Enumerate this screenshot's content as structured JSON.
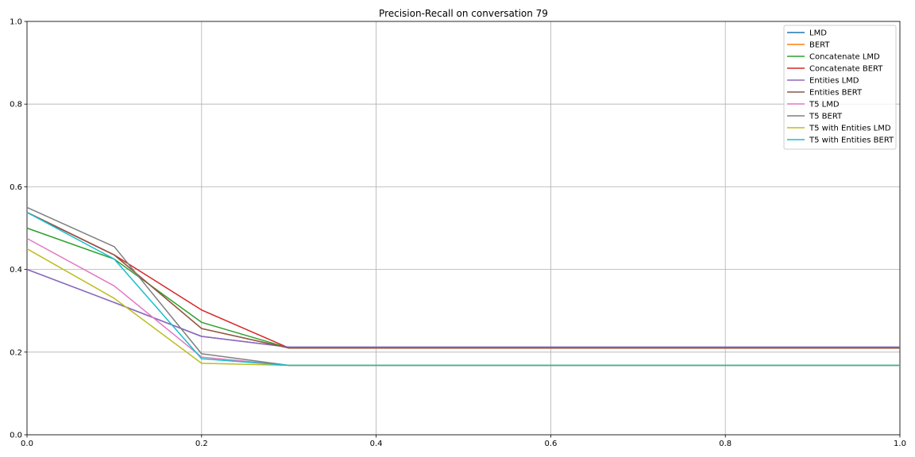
{
  "chart_data": {
    "type": "line",
    "title": "Precision-Recall on conversation 79",
    "xlabel": "",
    "ylabel": "",
    "xlim": [
      0,
      1
    ],
    "ylim": [
      0,
      1
    ],
    "xticks": [
      "0.0",
      "0.2",
      "0.4",
      "0.6",
      "0.8",
      "1.0"
    ],
    "yticks": [
      "0.0",
      "0.2",
      "0.4",
      "0.6",
      "0.8",
      "1.0"
    ],
    "grid": true,
    "legend_position": "top-right",
    "x": [
      0.0,
      0.1,
      0.2,
      0.3,
      0.4,
      0.5,
      0.6,
      0.7,
      0.8,
      0.9,
      1.0
    ],
    "series": [
      {
        "name": "LMD",
        "color": "#1f77b4",
        "values": [
          0.4,
          0.32,
          0.238,
          0.212,
          0.212,
          0.212,
          0.212,
          0.212,
          0.212,
          0.212,
          0.212
        ]
      },
      {
        "name": "BERT",
        "color": "#ff7f0e",
        "values": [
          0.538,
          0.435,
          0.257,
          0.21,
          0.21,
          0.21,
          0.21,
          0.21,
          0.21,
          0.21,
          0.21
        ]
      },
      {
        "name": "Concatenate LMD",
        "color": "#2ca02c",
        "values": [
          0.5,
          0.425,
          0.272,
          0.21,
          0.21,
          0.21,
          0.21,
          0.21,
          0.21,
          0.21,
          0.21
        ]
      },
      {
        "name": "Concatenate BERT",
        "color": "#d62728",
        "values": [
          0.538,
          0.435,
          0.302,
          0.21,
          0.21,
          0.21,
          0.21,
          0.21,
          0.21,
          0.21,
          0.21
        ]
      },
      {
        "name": "Entities LMD",
        "color": "#9467bd",
        "values": [
          0.4,
          0.32,
          0.238,
          0.212,
          0.212,
          0.212,
          0.212,
          0.212,
          0.212,
          0.212,
          0.212
        ]
      },
      {
        "name": "Entities BERT",
        "color": "#8c564b",
        "values": [
          0.538,
          0.435,
          0.257,
          0.21,
          0.21,
          0.21,
          0.21,
          0.21,
          0.21,
          0.21,
          0.21
        ]
      },
      {
        "name": "T5 LMD",
        "color": "#e377c2",
        "values": [
          0.475,
          0.36,
          0.188,
          0.168,
          0.168,
          0.168,
          0.168,
          0.168,
          0.168,
          0.168,
          0.168
        ]
      },
      {
        "name": "T5 BERT",
        "color": "#7f7f7f",
        "values": [
          0.55,
          0.455,
          0.196,
          0.168,
          0.168,
          0.168,
          0.168,
          0.168,
          0.168,
          0.168,
          0.168
        ]
      },
      {
        "name": "T5 with Entities LMD",
        "color": "#bcbd22",
        "values": [
          0.45,
          0.33,
          0.173,
          0.168,
          0.168,
          0.168,
          0.168,
          0.168,
          0.168,
          0.168,
          0.168
        ]
      },
      {
        "name": "T5 with Entities BERT",
        "color": "#17becf",
        "values": [
          0.538,
          0.425,
          0.184,
          0.168,
          0.168,
          0.168,
          0.168,
          0.168,
          0.168,
          0.168,
          0.168
        ]
      }
    ]
  }
}
